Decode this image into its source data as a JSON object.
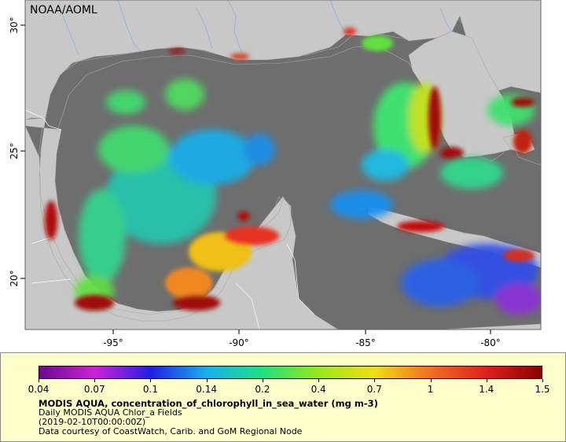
{
  "map": {
    "credit": "NOAA/AOML",
    "lon_ticks": [
      "-95°",
      "-90°",
      "-85°",
      "-80°"
    ],
    "lat_ticks": [
      "30°",
      "25°",
      "20°"
    ],
    "colors": {
      "ocean_nodata": "#6e6e6e",
      "land": "#c8c8c8",
      "border": "#ffffff",
      "river": "#8fb0d6"
    }
  },
  "legend": {
    "scale_labels": [
      "0.04",
      "0.07",
      "0.1",
      "0.14",
      "0.2",
      "0.4",
      "0.7",
      "1",
      "1.4",
      "1.5"
    ],
    "gradient_colors": [
      "#6a0a8e",
      "#cc22d8",
      "#2020e0",
      "#18b0f0",
      "#20e080",
      "#9ae818",
      "#f0e010",
      "#f07020",
      "#e02020",
      "#8a0000"
    ],
    "title": "MODIS AQUA, concentration_of_chlorophyll_in_sea_water (mg m-3)",
    "line1": "Daily MODIS AQUA Chlor_a Fields",
    "line2": "(2019-02-10T00:00:00Z)",
    "line3": "Data courtesy of CoastWatch, Carib. and GoM Regional Node"
  }
}
